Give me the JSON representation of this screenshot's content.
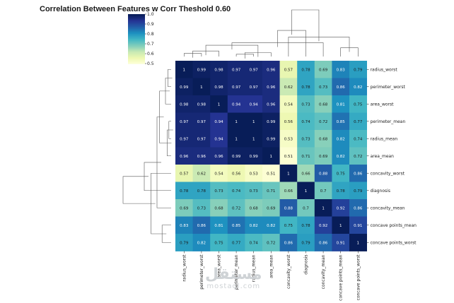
{
  "chart_data": {
    "type": "heatmap",
    "title": "Correlation Between Features w Corr Theshold 0.60",
    "labels": [
      "radius_worst",
      "perimeter_worst",
      "area_worst",
      "perimeter_mean",
      "radius_mean",
      "area_mean",
      "concavity_worst",
      "diagnosis",
      "concavity_mean",
      "concave points_mean",
      "concave points_worst"
    ],
    "matrix": [
      [
        1,
        0.99,
        0.98,
        0.97,
        0.97,
        0.96,
        0.57,
        0.78,
        0.69,
        0.83,
        0.79
      ],
      [
        0.99,
        1,
        0.98,
        0.97,
        0.97,
        0.96,
        0.62,
        0.78,
        0.73,
        0.86,
        0.82
      ],
      [
        0.98,
        0.98,
        1,
        0.94,
        0.94,
        0.96,
        0.54,
        0.73,
        0.68,
        0.81,
        0.75
      ],
      [
        0.97,
        0.97,
        0.94,
        1,
        1,
        0.99,
        0.56,
        0.74,
        0.72,
        0.85,
        0.77
      ],
      [
        0.97,
        0.97,
        0.94,
        1,
        1,
        0.99,
        0.53,
        0.73,
        0.68,
        0.82,
        0.74
      ],
      [
        0.96,
        0.96,
        0.96,
        0.99,
        0.99,
        1,
        0.51,
        0.71,
        0.69,
        0.82,
        0.72
      ],
      [
        0.57,
        0.62,
        0.54,
        0.56,
        0.53,
        0.51,
        1,
        0.66,
        0.88,
        0.75,
        0.86
      ],
      [
        0.78,
        0.78,
        0.73,
        0.74,
        0.73,
        0.71,
        0.66,
        1,
        0.7,
        0.78,
        0.79
      ],
      [
        0.69,
        0.73,
        0.68,
        0.72,
        0.68,
        0.69,
        0.88,
        0.7,
        1,
        0.92,
        0.86
      ],
      [
        0.83,
        0.86,
        0.81,
        0.85,
        0.82,
        0.82,
        0.75,
        0.78,
        0.92,
        1,
        0.91
      ],
      [
        0.79,
        0.82,
        0.75,
        0.77,
        0.74,
        0.72,
        0.86,
        0.79,
        0.86,
        0.91,
        1
      ]
    ],
    "colorbar": {
      "min": 0.5,
      "max": 1.0,
      "ticks": [
        0.5,
        0.6,
        0.7,
        0.8,
        0.9,
        1.0
      ]
    },
    "colormap": [
      "#ffffd9",
      "#edf8b1",
      "#c7e9b4",
      "#7fcdbb",
      "#41b6c4",
      "#1d91c0",
      "#225ea8",
      "#253494",
      "#081d58"
    ]
  },
  "watermark": {
    "arabic": "مستقل",
    "latin": "mostaql.com"
  }
}
